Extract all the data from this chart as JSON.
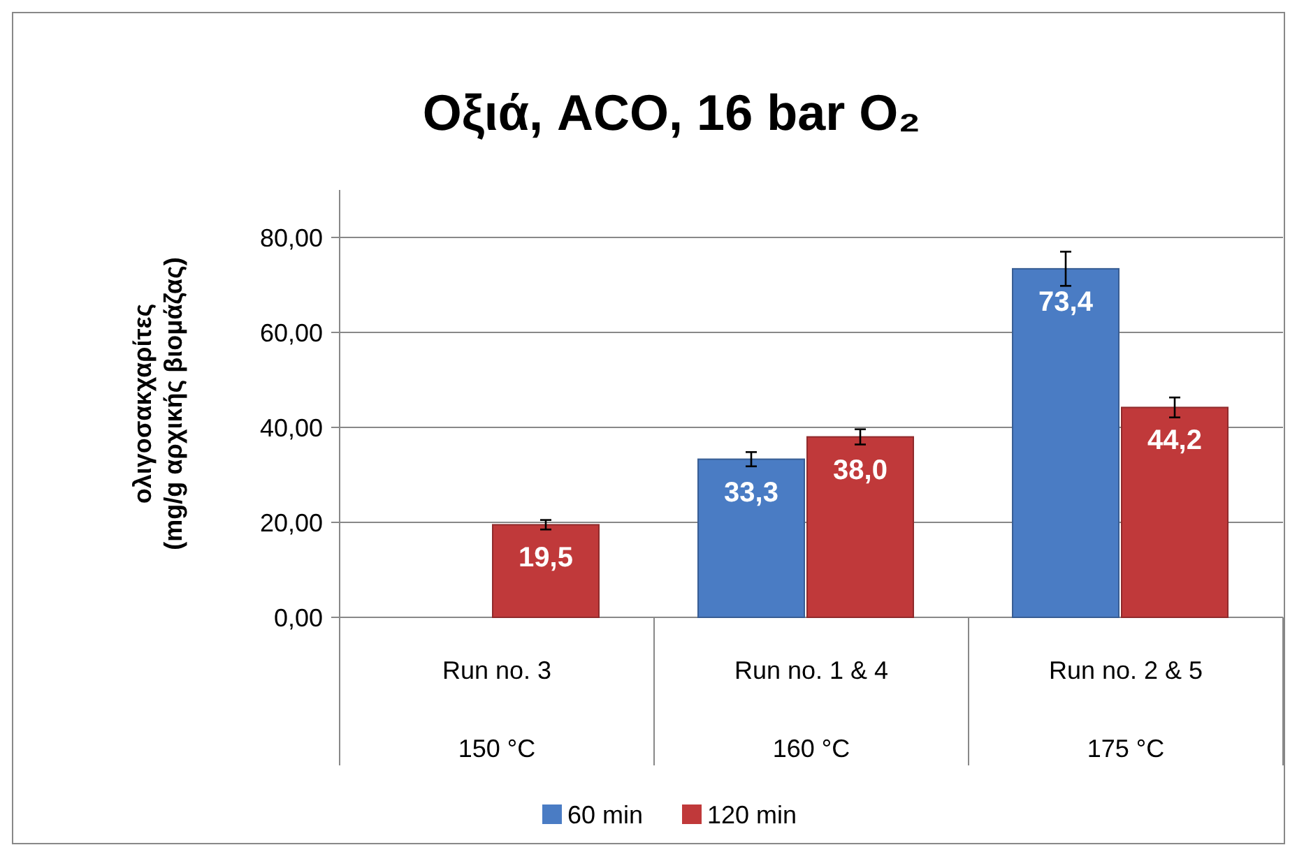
{
  "chart_data": {
    "type": "bar",
    "title": "Οξιά, ACO, 16 bar O₂",
    "ylabel": "ολιγοσακχαρίτες\n(mg/g αρχικής βιομάζας)",
    "categories": [
      "Run no. 3\n150 °C",
      "Run no. 1 & 4\n160 °C",
      "Run no. 2 & 5\n175 °C"
    ],
    "series": [
      {
        "name": "60 min",
        "color": "#4a7cc4",
        "values": [
          null,
          33.3,
          73.4
        ],
        "errors": [
          null,
          1.5,
          3.6
        ],
        "value_labels": [
          null,
          "33,3",
          "73,4"
        ]
      },
      {
        "name": "120 min",
        "color": "#c0393a",
        "values": [
          19.5,
          38.0,
          44.2
        ],
        "errors": [
          1.0,
          1.6,
          2.1
        ],
        "value_labels": [
          "19,5",
          "38,0",
          "44,2"
        ]
      }
    ],
    "ylim": [
      0,
      80
    ],
    "yticks": [
      {
        "value": 0,
        "label": "0,00"
      },
      {
        "value": 20,
        "label": "20,00"
      },
      {
        "value": 40,
        "label": "40,00"
      },
      {
        "value": 60,
        "label": "60,00"
      },
      {
        "value": 80,
        "label": "80,00"
      }
    ],
    "grid": "y",
    "legend": "bottom"
  }
}
